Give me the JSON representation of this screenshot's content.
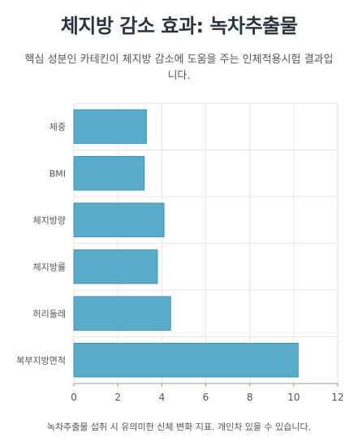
{
  "title": "체지방 감소 효과: 녹차추출물",
  "subtitle": "핵심 성분인 카테킨이 체지방 감소에 도움을 주는 인체적용시험 결과입니다.",
  "footnote": "녹차추출물 섭취 시 유의미한 신체 변화 지표. 개인차 있을 수 있습니다.",
  "chart_data": {
    "type": "bar",
    "orientation": "horizontal",
    "categories": [
      "체중",
      "BMI",
      "체지방량",
      "체지방률",
      "허리둘레",
      "복부지방면적"
    ],
    "values": [
      3.3,
      3.2,
      4.1,
      3.8,
      4.4,
      10.2
    ],
    "xlim": [
      0,
      12
    ],
    "xticks": [
      0,
      2,
      4,
      6,
      8,
      10,
      12
    ],
    "grid": true,
    "colors": {
      "bar": "#5aacca",
      "bar_edge": "#3f8fae",
      "grid": "#e6e6e6",
      "axis": "#999999"
    }
  }
}
